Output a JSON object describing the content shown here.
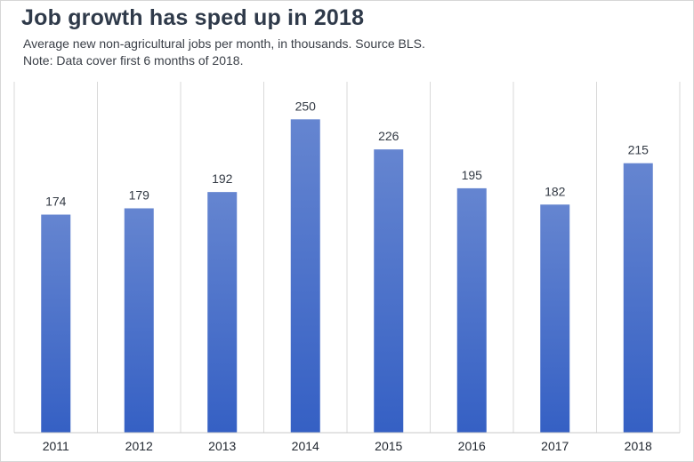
{
  "title": "Job growth has sped up in 2018",
  "subtitle": "Average new non-agricultural jobs per month, in thousands. Source BLS.",
  "note": "Note: Data cover first 6 months of 2018.",
  "colors": {
    "bar_top": "#6585d0",
    "bar_bottom": "#3560c4",
    "grid": "#d9d9d9",
    "axis": "#c8c8c8"
  },
  "chart_data": {
    "type": "bar",
    "title": "Job growth has sped up in 2018",
    "xlabel": "",
    "ylabel": "",
    "categories": [
      "2011",
      "2012",
      "2013",
      "2014",
      "2015",
      "2016",
      "2017",
      "2018"
    ],
    "values": [
      174,
      179,
      192,
      250,
      226,
      195,
      182,
      215
    ],
    "ylim": [
      0,
      280
    ],
    "grid": "vertical",
    "data_labels": true
  }
}
